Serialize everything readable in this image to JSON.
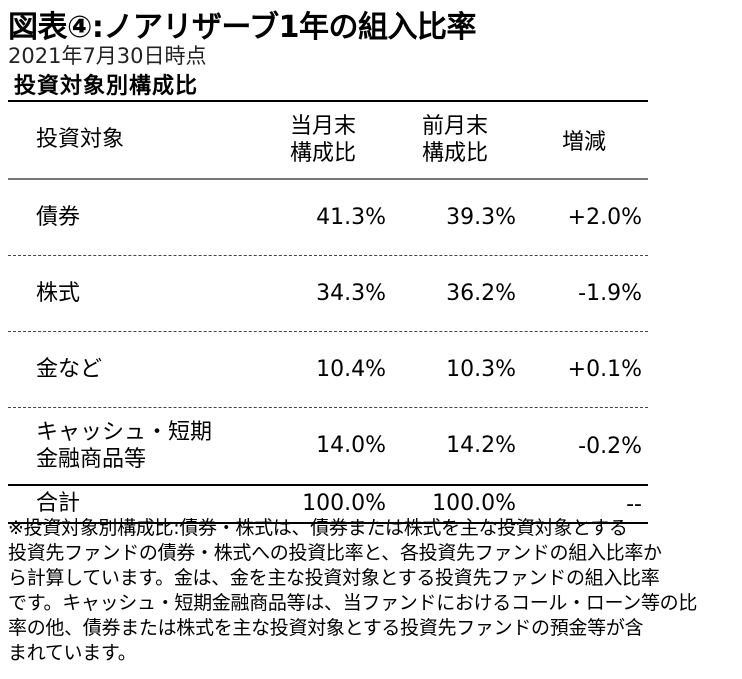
{
  "title": "図表④:ノアリザーブ1年の組入比率",
  "date": "2021年7月30日時点",
  "section_title": "投資対象別構成比",
  "table": {
    "headers": {
      "category": "投資対象",
      "current_l1": "当月末",
      "current_l2": "構成比",
      "previous_l1": "前月末",
      "previous_l2": "構成比",
      "change": "増減"
    },
    "rows": [
      {
        "category": "債券",
        "category_l2": "",
        "current": "41.3%",
        "previous": "39.3%",
        "change": "+2.0%"
      },
      {
        "category": "株式",
        "category_l2": "",
        "current": "34.3%",
        "previous": "36.2%",
        "change": "-1.9%"
      },
      {
        "category": "金など",
        "category_l2": "",
        "current": "10.4%",
        "previous": "10.3%",
        "change": "+0.1%"
      },
      {
        "category": "キャッシュ・短期",
        "category_l2": "金融商品等",
        "current": "14.0%",
        "previous": "14.2%",
        "change": "-0.2%"
      }
    ],
    "total": {
      "category": "合計",
      "current": "100.0%",
      "previous": "100.0%",
      "change": "--"
    }
  },
  "footnote": [
    "※投資対象別構成比:債券・株式は、債券または株式を主な投資対象とする",
    "投資先ファンドの債券・株式への投資比率と、各投資先ファンドの組入比率か",
    "ら計算しています。金は、金を主な投資対象とする投資先ファンドの組入比率",
    "です。キャッシュ・短期金融商品等は、当ファンドにおけるコール・ローン等の比",
    "率の他、債券または株式を主な投資対象とする投資先ファンドの預金等が含",
    "まれています。"
  ]
}
